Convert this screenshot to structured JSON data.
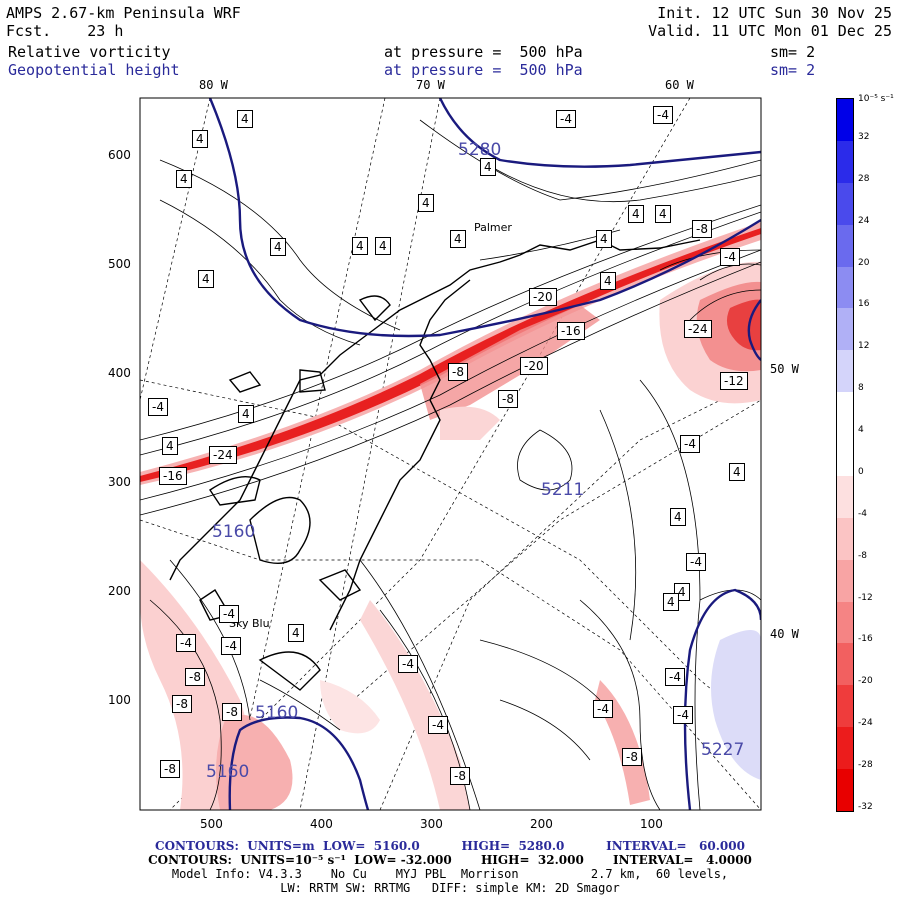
{
  "header": {
    "title": "AMPS 2.67-km Peninsula WRF",
    "fcst": "Fcst.    23 h",
    "init": "Init. 12 UTC Sun 30 Nov 25",
    "valid": "Valid. 11 UTC Mon 01 Dec 25",
    "field1": {
      "name": "Relative vorticity",
      "level": "at pressure =  500 hPa",
      "sm": "sm= 2"
    },
    "field2": {
      "name": "Geopotential height",
      "level": "at pressure =  500 hPa",
      "sm": "sm= 2"
    }
  },
  "longitude_labels": {
    "top": [
      "80 W",
      "70 W",
      "60 W"
    ],
    "right": [
      "50 W",
      "40 W"
    ]
  },
  "axes": {
    "x_ticks": [
      "500",
      "400",
      "300",
      "200",
      "100"
    ],
    "y_ticks": [
      "600",
      "500",
      "400",
      "300",
      "200",
      "100"
    ]
  },
  "height_contour_labels": [
    "5280",
    "5211",
    "5160",
    "5160",
    "5160",
    "5227"
  ],
  "place_labels": [
    "Palmer",
    "Sky Blu"
  ],
  "vorticity_labels": [
    "4",
    "4",
    "4",
    "4",
    "4",
    "4",
    "4",
    "4",
    "4",
    "4",
    "4",
    "4",
    "4",
    "4",
    "4",
    "4",
    "4",
    "4",
    "4",
    "4",
    "4",
    "-4",
    "-4",
    "-4",
    "-4",
    "-4",
    "-4",
    "-4",
    "-4",
    "-4",
    "-4",
    "-4",
    "-4",
    "-4",
    "-4",
    "-8",
    "-8",
    "-8",
    "-8",
    "-8",
    "-8",
    "-8",
    "-8",
    "-8",
    "-12",
    "-16",
    "-16",
    "-20",
    "-20",
    "-24",
    "-24"
  ],
  "colorbar": {
    "units": "10⁻⁵ s⁻¹",
    "labels": [
      "32",
      "28",
      "24",
      "20",
      "16",
      "12",
      "8",
      "4",
      "0",
      "-4",
      "-8",
      "-12",
      "-16",
      "-20",
      "-24",
      "-28",
      "-32"
    ],
    "colors": [
      "#0000e8",
      "#2b2bea",
      "#4a4aec",
      "#6a6aee",
      "#8c8cf2",
      "#b0b0f6",
      "#d4d4fa",
      "#ffffff",
      "#ffffff",
      "#fde0e0",
      "#fbc4c4",
      "#f8a4a4",
      "#f58484",
      "#f26060",
      "#ef3c3c",
      "#ec1c1c",
      "#e80000"
    ]
  },
  "footer": {
    "line1": "CONTOURS:  UNITS=m  LOW=  5160.0          HIGH=  5280.0          INTERVAL=   60.000",
    "line2": "CONTOURS:  UNITS=10⁻⁵ s⁻¹  LOW= -32.000       HIGH=  32.000       INTERVAL=   4.0000",
    "line3": "Model Info: V4.3.3    No Cu    MYJ PBL  Morrison          2.7 km,  60 levels,",
    "line4": "LW: RRTM SW: RRTMG   DIFF: simple KM: 2D Smagor"
  }
}
